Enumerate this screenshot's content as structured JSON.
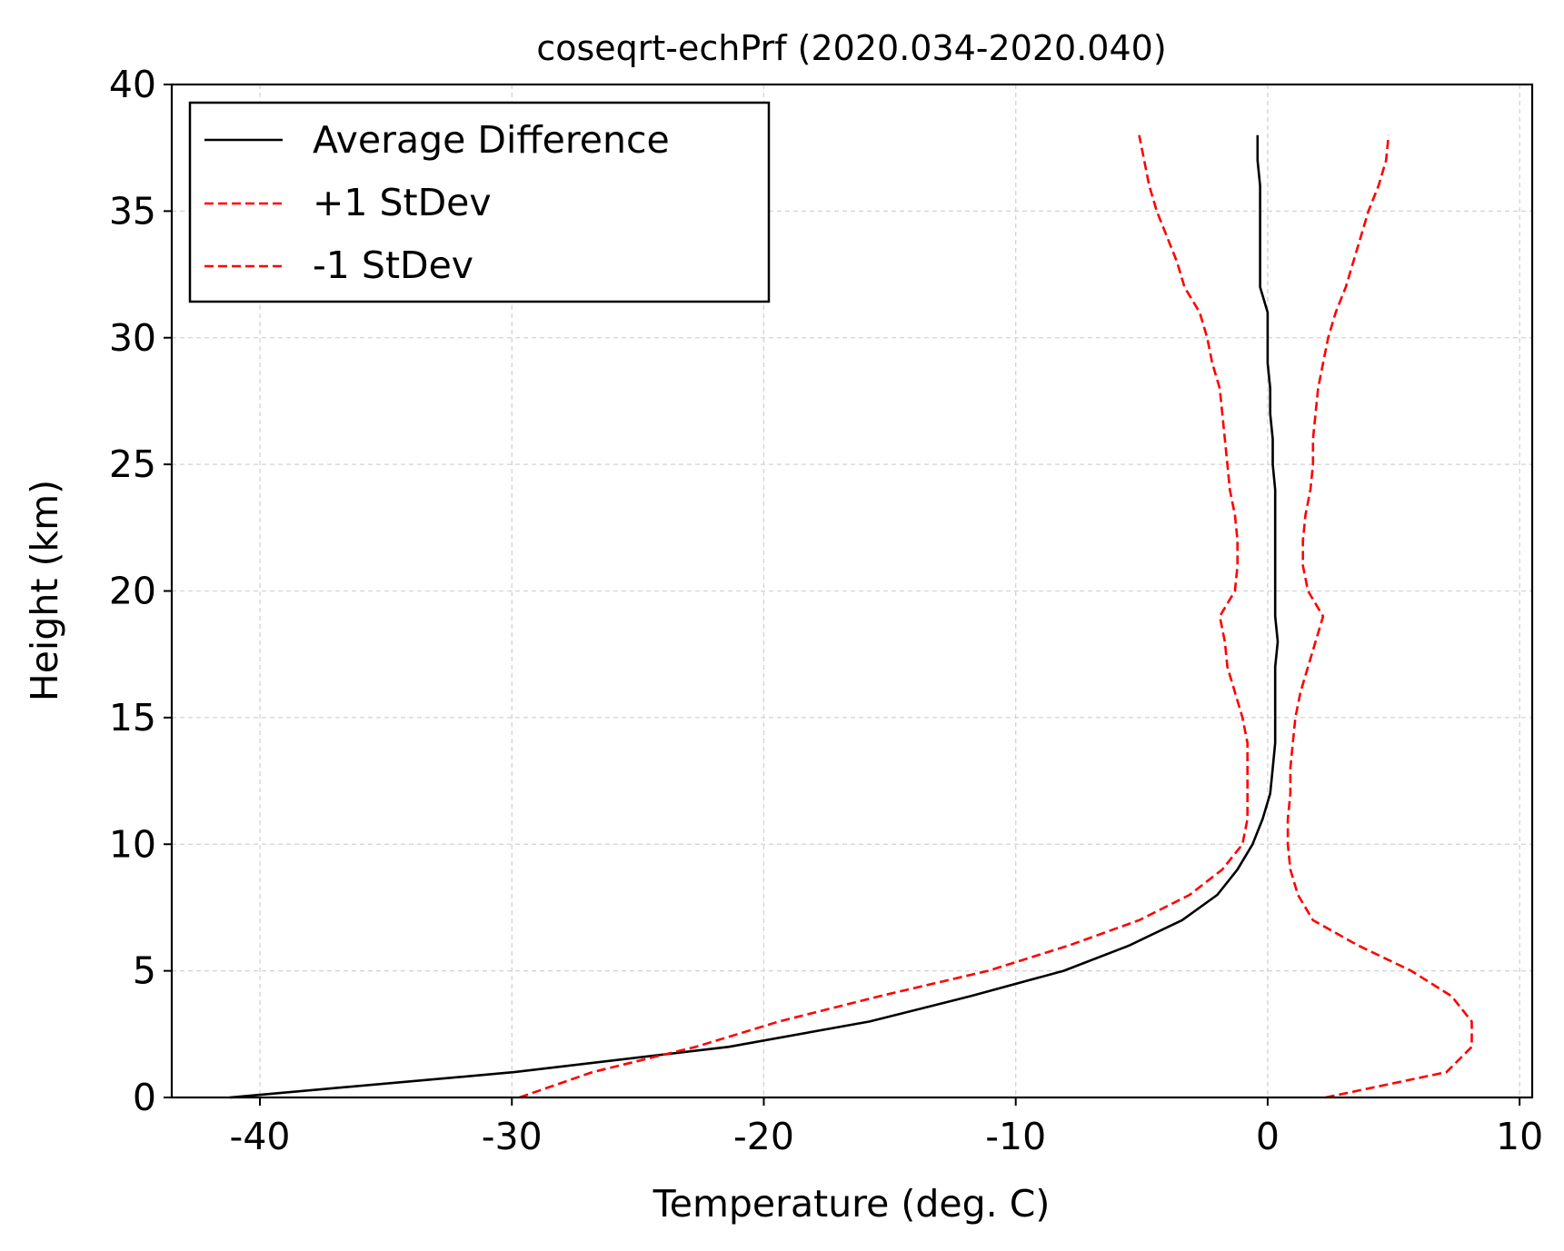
{
  "chart_data": {
    "type": "line",
    "title": "coseqrt-echPrf (2020.034-2020.040)",
    "xlabel": "Temperature (deg. C)",
    "ylabel": "Height (km)",
    "xlim": [
      -43.5,
      10.5
    ],
    "ylim": [
      0,
      40
    ],
    "xticks": [
      -40,
      -30,
      -20,
      -10,
      0,
      10
    ],
    "yticks": [
      0,
      5,
      10,
      15,
      20,
      25,
      30,
      35,
      40
    ],
    "grid": true,
    "legend_position": "top-left",
    "series": [
      {
        "name": "Average Difference",
        "color": "#000000",
        "dash": "solid",
        "points": [
          [
            -41.2,
            0
          ],
          [
            -29.9,
            1
          ],
          [
            -21.4,
            2
          ],
          [
            -15.8,
            3
          ],
          [
            -11.8,
            4
          ],
          [
            -8.1,
            5
          ],
          [
            -5.5,
            6
          ],
          [
            -3.4,
            7
          ],
          [
            -2.0,
            8
          ],
          [
            -1.2,
            9
          ],
          [
            -0.6,
            10
          ],
          [
            -0.2,
            11
          ],
          [
            0.1,
            12
          ],
          [
            0.2,
            13
          ],
          [
            0.3,
            14
          ],
          [
            0.3,
            15
          ],
          [
            0.3,
            16
          ],
          [
            0.3,
            17
          ],
          [
            0.4,
            18
          ],
          [
            0.3,
            19
          ],
          [
            0.3,
            20
          ],
          [
            0.3,
            21
          ],
          [
            0.3,
            22
          ],
          [
            0.3,
            23
          ],
          [
            0.3,
            24
          ],
          [
            0.2,
            25
          ],
          [
            0.2,
            26
          ],
          [
            0.1,
            27
          ],
          [
            0.1,
            28
          ],
          [
            0.0,
            29
          ],
          [
            0.0,
            30
          ],
          [
            0.0,
            31
          ],
          [
            -0.3,
            32
          ],
          [
            -0.3,
            33
          ],
          [
            -0.3,
            34
          ],
          [
            -0.3,
            35
          ],
          [
            -0.3,
            36
          ],
          [
            -0.4,
            37
          ],
          [
            -0.4,
            38
          ]
        ]
      },
      {
        "name": "+1 StDev",
        "color": "#ff0000",
        "dash": "dashed",
        "points": [
          [
            2.3,
            0
          ],
          [
            7.1,
            1
          ],
          [
            8.1,
            2
          ],
          [
            8.1,
            3
          ],
          [
            7.3,
            4
          ],
          [
            5.7,
            5
          ],
          [
            3.6,
            6
          ],
          [
            1.8,
            7
          ],
          [
            1.2,
            8
          ],
          [
            0.9,
            9
          ],
          [
            0.8,
            10
          ],
          [
            0.8,
            11
          ],
          [
            0.9,
            12
          ],
          [
            0.9,
            13
          ],
          [
            1.0,
            14
          ],
          [
            1.1,
            15
          ],
          [
            1.3,
            16
          ],
          [
            1.6,
            17
          ],
          [
            1.9,
            18
          ],
          [
            2.2,
            19
          ],
          [
            1.6,
            20
          ],
          [
            1.4,
            21
          ],
          [
            1.4,
            22
          ],
          [
            1.5,
            23
          ],
          [
            1.7,
            24
          ],
          [
            1.8,
            25
          ],
          [
            1.8,
            26
          ],
          [
            1.9,
            27
          ],
          [
            2.0,
            28
          ],
          [
            2.2,
            29
          ],
          [
            2.4,
            30
          ],
          [
            2.7,
            31
          ],
          [
            3.1,
            32
          ],
          [
            3.4,
            33
          ],
          [
            3.7,
            34
          ],
          [
            4.0,
            35
          ],
          [
            4.4,
            36
          ],
          [
            4.7,
            37
          ],
          [
            4.8,
            38
          ]
        ]
      },
      {
        "name": "-1 StDev",
        "color": "#ff0000",
        "dash": "dashed",
        "points": [
          [
            -29.7,
            0
          ],
          [
            -26.8,
            1
          ],
          [
            -22.7,
            2
          ],
          [
            -19.4,
            3
          ],
          [
            -15.4,
            4
          ],
          [
            -11.1,
            5
          ],
          [
            -7.9,
            6
          ],
          [
            -5.1,
            7
          ],
          [
            -3.1,
            8
          ],
          [
            -1.8,
            9
          ],
          [
            -1.0,
            10
          ],
          [
            -0.8,
            11
          ],
          [
            -0.8,
            12
          ],
          [
            -0.8,
            13
          ],
          [
            -0.8,
            14
          ],
          [
            -1.0,
            15
          ],
          [
            -1.3,
            16
          ],
          [
            -1.6,
            17
          ],
          [
            -1.7,
            18
          ],
          [
            -1.9,
            19
          ],
          [
            -1.3,
            20
          ],
          [
            -1.2,
            21
          ],
          [
            -1.2,
            22
          ],
          [
            -1.3,
            23
          ],
          [
            -1.5,
            24
          ],
          [
            -1.6,
            25
          ],
          [
            -1.7,
            26
          ],
          [
            -1.8,
            27
          ],
          [
            -1.9,
            28
          ],
          [
            -2.2,
            29
          ],
          [
            -2.4,
            30
          ],
          [
            -2.7,
            31
          ],
          [
            -3.3,
            32
          ],
          [
            -3.6,
            33
          ],
          [
            -4.0,
            34
          ],
          [
            -4.4,
            35
          ],
          [
            -4.7,
            36
          ],
          [
            -4.9,
            37
          ],
          [
            -5.1,
            38
          ]
        ]
      }
    ]
  }
}
